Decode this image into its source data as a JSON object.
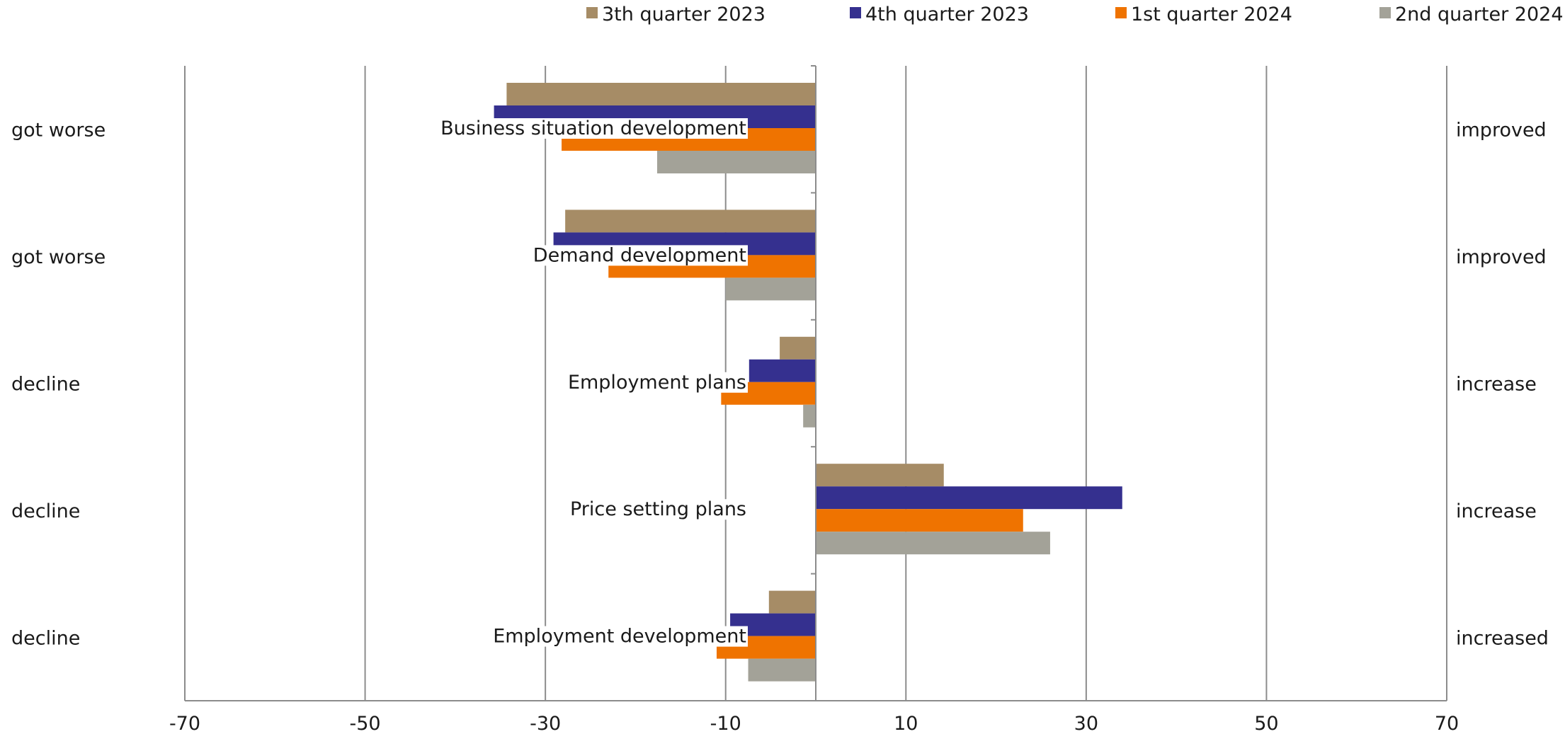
{
  "chart_data": {
    "type": "bar",
    "orientation": "horizontal",
    "categories": [
      "Business situation development",
      "Demand development",
      "Employment plans",
      "Price setting plans",
      "Employment development"
    ],
    "left_labels": [
      "got worse",
      "got worse",
      "decline",
      "decline",
      "decline"
    ],
    "right_labels": [
      "improved",
      "improved",
      "increase",
      "increase",
      "increased"
    ],
    "series": [
      {
        "name": "3th quarter 2023",
        "color": "#a68c66",
        "values": [
          -34.3,
          -27.8,
          -4.0,
          14.2,
          -5.2
        ]
      },
      {
        "name": "4th quarter 2023",
        "color": "#35308f",
        "values": [
          -35.7,
          -29.1,
          -7.4,
          34.0,
          -9.5
        ]
      },
      {
        "name": "1st quarter 2024",
        "color": "#ef7300",
        "values": [
          -28.2,
          -23.0,
          -10.5,
          23.0,
          -11.0
        ]
      },
      {
        "name": "2nd quarter 2024",
        "color": "#a3a298",
        "values": [
          -17.6,
          -10.0,
          -1.4,
          26.0,
          -7.5
        ]
      }
    ],
    "xlim": [
      -70,
      70
    ],
    "xticks": [
      -70,
      -50,
      -30,
      -10,
      10,
      30,
      50,
      70
    ],
    "grid": true,
    "legend": "top"
  }
}
